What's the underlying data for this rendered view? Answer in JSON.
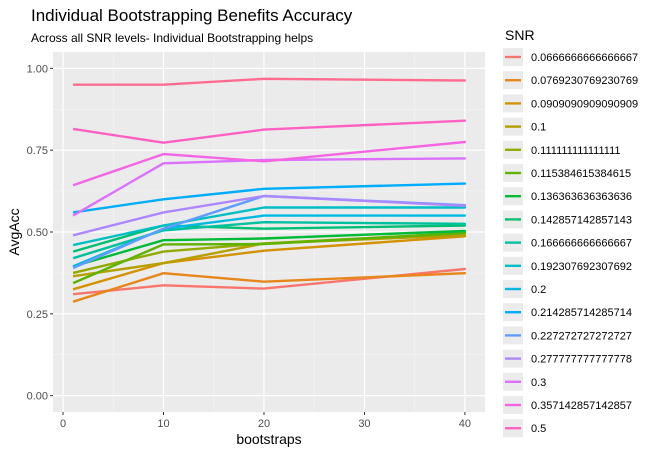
{
  "chart_data": {
    "type": "line",
    "title": "Individual Bootstrapping Benefits Accuracy",
    "subtitle": "Across all SNR levels- Individual Bootstrapping helps",
    "xlabel": "bootstraps",
    "ylabel": "AvgAcc",
    "xlim": [
      -1,
      42
    ],
    "ylim": [
      -0.05,
      1.05
    ],
    "x_ticks": [
      0,
      10,
      20,
      30,
      40
    ],
    "x_tick_labels": [
      "0",
      "10",
      "20",
      "30",
      "40"
    ],
    "y_ticks": [
      0.0,
      0.25,
      0.5,
      0.75,
      1.0
    ],
    "y_tick_labels": [
      "0.00",
      "0.25",
      "0.50",
      "0.75",
      "1.00"
    ],
    "grid": true,
    "background": "#ebebeb",
    "legend": {
      "title": "SNR",
      "placement": "right"
    },
    "series": [
      {
        "name": "0.0666666666666667",
        "color": "#F8766D",
        "x": [
          1,
          10,
          20,
          40,
          40,
          20,
          10,
          1
        ],
        "y": [
          0.31,
          0.337,
          0.327,
          0.387,
          0.387,
          0.327,
          0.337,
          0.31
        ]
      },
      {
        "name": "0.0769230769230769",
        "color": "#E7861B",
        "x": [
          1,
          10,
          20,
          40,
          40,
          20,
          10,
          1
        ],
        "y": [
          0.287,
          0.374,
          0.348,
          0.374,
          0.374,
          0.348,
          0.374,
          0.287
        ]
      },
      {
        "name": "0.0909090909090909",
        "color": "#D39200",
        "x": [
          1,
          10,
          20,
          40,
          40,
          20,
          10,
          1
        ],
        "y": [
          0.325,
          0.405,
          0.443,
          0.487,
          0.487,
          0.443,
          0.405,
          0.325
        ]
      },
      {
        "name": "0.1",
        "color": "#B79F00",
        "x": [
          1,
          10,
          20,
          40,
          40,
          20,
          10,
          1
        ],
        "y": [
          0.365,
          0.405,
          0.465,
          0.49,
          0.49,
          0.465,
          0.405,
          0.365
        ]
      },
      {
        "name": "0.111111111111111",
        "color": "#93AA00",
        "x": [
          1,
          10,
          20,
          40,
          40,
          20,
          10,
          1
        ],
        "y": [
          0.375,
          0.44,
          0.465,
          0.497,
          0.497,
          0.465,
          0.44,
          0.375
        ]
      },
      {
        "name": "0.115384615384615",
        "color": "#5EB300",
        "x": [
          1,
          10,
          20,
          40,
          40,
          20,
          10,
          1
        ],
        "y": [
          0.344,
          0.462,
          0.463,
          0.497,
          0.497,
          0.463,
          0.462,
          0.344
        ]
      },
      {
        "name": "0.136363636363636",
        "color": "#00BA38",
        "x": [
          1,
          10,
          20,
          40,
          40,
          20,
          10,
          1
        ],
        "y": [
          0.395,
          0.475,
          0.48,
          0.503,
          0.503,
          0.48,
          0.475,
          0.395
        ]
      },
      {
        "name": "0.142857142857143",
        "color": "#00BF74",
        "x": [
          1,
          10,
          20,
          40,
          40,
          20,
          10,
          1
        ],
        "y": [
          0.44,
          0.52,
          0.51,
          0.52,
          0.52,
          0.51,
          0.52,
          0.44
        ]
      },
      {
        "name": "0.166666666666667",
        "color": "#00C19F",
        "x": [
          1,
          10,
          20,
          40,
          40,
          20,
          10,
          1
        ],
        "y": [
          0.42,
          0.505,
          0.53,
          0.525,
          0.525,
          0.53,
          0.505,
          0.42
        ]
      },
      {
        "name": "0.192307692307692",
        "color": "#00BFC4",
        "x": [
          1,
          10,
          20,
          40,
          40,
          20,
          10,
          1
        ],
        "y": [
          0.46,
          0.52,
          0.575,
          0.575,
          0.575,
          0.575,
          0.52,
          0.46
        ]
      },
      {
        "name": "0.2",
        "color": "#00B9E3",
        "x": [
          1,
          10,
          20,
          40,
          40,
          20,
          10,
          1
        ],
        "y": [
          0.395,
          0.51,
          0.55,
          0.55,
          0.55,
          0.55,
          0.51,
          0.395
        ]
      },
      {
        "name": "0.214285714285714",
        "color": "#00ADFA",
        "x": [
          1,
          10,
          20,
          40,
          40,
          20,
          10,
          1
        ],
        "y": [
          0.56,
          0.6,
          0.632,
          0.648,
          0.648,
          0.632,
          0.6,
          0.56
        ]
      },
      {
        "name": "0.227272727272727",
        "color": "#619CFF",
        "x": [
          1,
          10,
          20,
          40,
          40,
          20,
          10,
          1
        ],
        "y": [
          0.39,
          0.51,
          0.61,
          0.582,
          0.582,
          0.61,
          0.51,
          0.39
        ]
      },
      {
        "name": "0.277777777777778",
        "color": "#AE87FF",
        "x": [
          1,
          10,
          20,
          40,
          40,
          20,
          10,
          1
        ],
        "y": [
          0.49,
          0.56,
          0.61,
          0.58,
          0.58,
          0.61,
          0.56,
          0.49
        ]
      },
      {
        "name": "0.3",
        "color": "#DB72FB",
        "x": [
          1,
          10,
          20,
          40,
          40,
          20,
          10,
          1
        ],
        "y": [
          0.55,
          0.71,
          0.72,
          0.725,
          0.725,
          0.72,
          0.71,
          0.55
        ]
      },
      {
        "name": "0.357142857142857",
        "color": "#F564E3",
        "x": [
          1,
          10,
          20,
          40,
          40,
          20,
          10,
          1
        ],
        "y": [
          0.643,
          0.738,
          0.716,
          0.775,
          0.775,
          0.716,
          0.738,
          0.643
        ]
      },
      {
        "name": "0.5",
        "color": "#FF61C3",
        "x": [
          1,
          10,
          20,
          40,
          40,
          20,
          10,
          1
        ],
        "y": [
          0.815,
          0.773,
          0.813,
          0.84,
          0.84,
          0.813,
          0.773,
          0.815
        ]
      },
      {
        "name": "",
        "color": "#FF6C91",
        "x": [
          1,
          10,
          20,
          40,
          40,
          20,
          10,
          1
        ],
        "y": [
          0.95,
          0.95,
          0.968,
          0.963,
          0.963,
          0.968,
          0.95,
          0.95
        ]
      }
    ]
  }
}
